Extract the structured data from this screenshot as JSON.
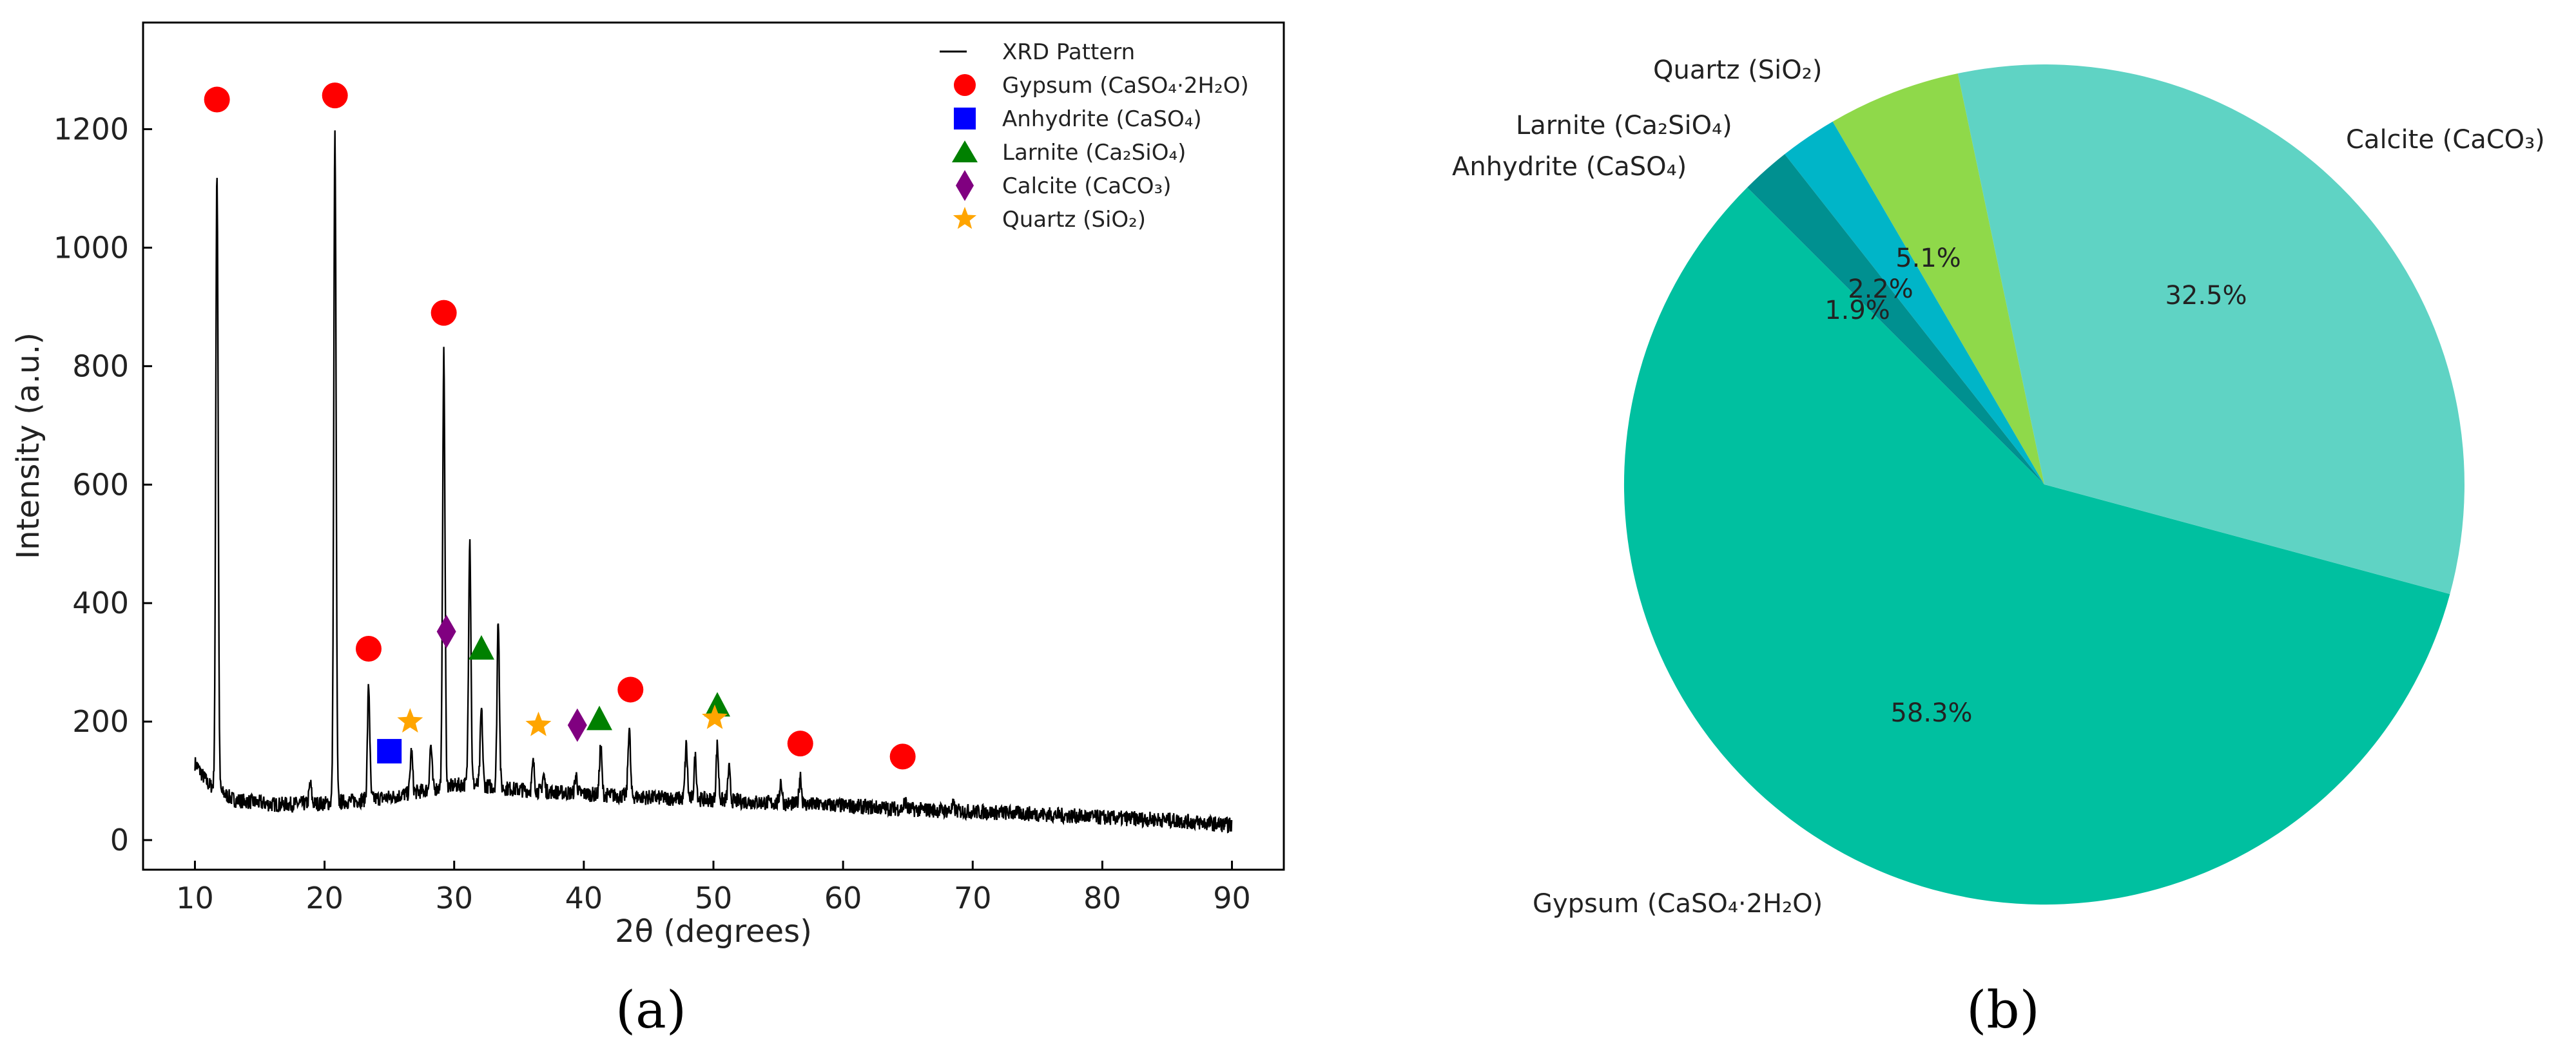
{
  "chart_data": [
    {
      "type": "line",
      "panel": "(a)",
      "xlabel": "2θ (degrees)",
      "ylabel": "Intensity (a.u.)",
      "xlim": [
        6,
        94
      ],
      "ylim": [
        -50,
        1380
      ],
      "xticks": [
        10,
        20,
        30,
        40,
        50,
        60,
        70,
        80,
        90
      ],
      "yticks": [
        0,
        200,
        400,
        600,
        800,
        1000,
        1200
      ],
      "legend_position": "top-right",
      "series": [
        {
          "name": "XRD Pattern",
          "color": "#000000",
          "baseline": [
            [
              10,
              130
            ],
            [
              11,
              95
            ],
            [
              13,
              68
            ],
            [
              16,
              60
            ],
            [
              20,
              62
            ],
            [
              25,
              72
            ],
            [
              28,
              85
            ],
            [
              31,
              95
            ],
            [
              35,
              85
            ],
            [
              40,
              78
            ],
            [
              45,
              72
            ],
            [
              50,
              68
            ],
            [
              55,
              62
            ],
            [
              60,
              58
            ],
            [
              65,
              52
            ],
            [
              70,
              48
            ],
            [
              75,
              44
            ],
            [
              80,
              38
            ],
            [
              85,
              34
            ],
            [
              90,
              25
            ]
          ],
          "peaks": [
            [
              11.7,
              1130
            ],
            [
              20.8,
              1190
            ],
            [
              23.4,
              260
            ],
            [
              26.7,
              150
            ],
            [
              29.2,
              820
            ],
            [
              31.2,
              510
            ],
            [
              32.1,
              220
            ],
            [
              33.4,
              375
            ],
            [
              36.1,
              130
            ],
            [
              36.9,
              110
            ],
            [
              39.4,
              110
            ],
            [
              41.3,
              160
            ],
            [
              43.5,
              190
            ],
            [
              47.9,
              160
            ],
            [
              48.6,
              140
            ],
            [
              50.3,
              160
            ],
            [
              51.2,
              120
            ],
            [
              55.2,
              100
            ],
            [
              56.7,
              110
            ],
            [
              64.8,
              65
            ],
            [
              68.5,
              58
            ],
            [
              18.9,
              95
            ],
            [
              28.2,
              160
            ]
          ]
        },
        {
          "name": "Gypsum (CaSO₄·2H₂O)",
          "marker": "circle",
          "color": "#ff0000",
          "points": [
            [
              11.7,
              1250
            ],
            [
              20.8,
              1257
            ],
            [
              23.4,
              323
            ],
            [
              29.2,
              890
            ],
            [
              43.6,
              254
            ],
            [
              56.7,
              163
            ],
            [
              64.6,
              141
            ]
          ]
        },
        {
          "name": "Anhydrite (CaSO₄)",
          "marker": "square",
          "color": "#0000ff",
          "points": [
            [
              25.0,
              150
            ]
          ]
        },
        {
          "name": "Larnite (Ca₂SiO₄)",
          "marker": "triangle",
          "color": "#008000",
          "points": [
            [
              32.1,
              322
            ],
            [
              41.2,
              203
            ],
            [
              50.3,
              226
            ]
          ]
        },
        {
          "name": "Calcite (CaCO₃)",
          "marker": "diamond",
          "color": "#800080",
          "points": [
            [
              29.4,
              352
            ],
            [
              39.5,
              194
            ]
          ]
        },
        {
          "name": "Quartz (SiO₂)",
          "marker": "star",
          "color": "#ffa500",
          "points": [
            [
              26.6,
              200
            ],
            [
              36.5,
              194
            ],
            [
              50.1,
              206
            ]
          ]
        }
      ]
    },
    {
      "type": "pie",
      "panel": "(b)",
      "start_angle_deg": 135,
      "slices": [
        {
          "label": "Gypsum (CaSO₄·2H₂O)",
          "value": 58.3,
          "pct": "58.3%",
          "color": "#00c0a0"
        },
        {
          "label": "Calcite (CaCO₃)",
          "value": 32.5,
          "pct": "32.5%",
          "color": "#5fd3c4"
        },
        {
          "label": "Quartz (SiO₂)",
          "value": 5.1,
          "pct": "5.1%",
          "color": "#8fd94a"
        },
        {
          "label": "Larnite (Ca₂SiO₄)",
          "value": 2.2,
          "pct": "2.2%",
          "color": "#00b5c8"
        },
        {
          "label": "Anhydrite (CaSO₄)",
          "value": 1.9,
          "pct": "1.9%",
          "color": "#009090"
        }
      ]
    }
  ]
}
